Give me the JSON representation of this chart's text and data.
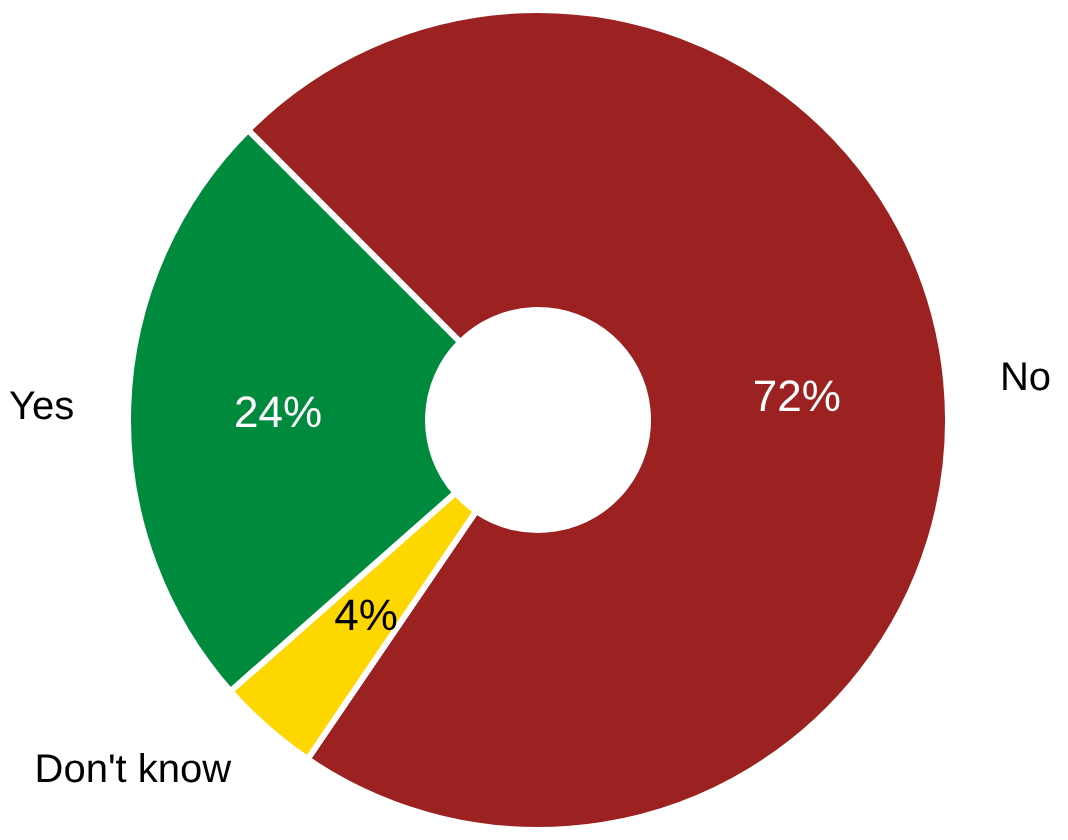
{
  "chart_data": {
    "type": "donut",
    "categories": [
      "No",
      "Don't know",
      "Yes"
    ],
    "values": [
      72,
      4,
      24
    ],
    "colors": [
      "#9b2220",
      "#ffd700",
      "#008a3e"
    ],
    "value_labels": [
      "72%",
      "4%",
      "24%"
    ]
  }
}
